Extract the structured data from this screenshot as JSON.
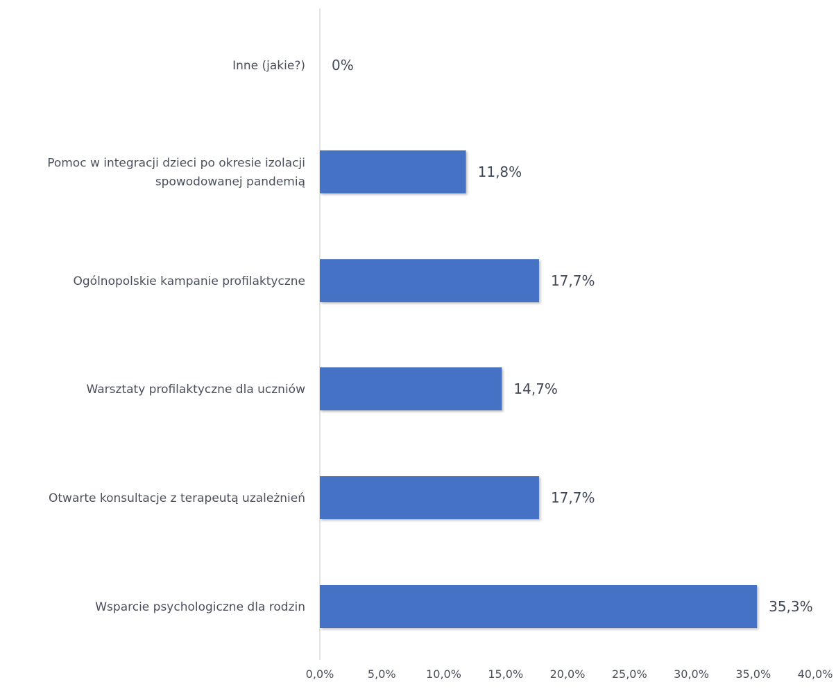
{
  "chart_data": {
    "type": "bar",
    "orientation": "horizontal",
    "categories": [
      "Inne (jakie?)",
      "Pomoc w integracji dzieci po okresie izolacji spowodowanej pandemią",
      "Ogólnopolskie kampanie profilaktyczne",
      "Warsztaty profilaktyczne dla uczniów",
      "Otwarte konsultacje z terapeutą uzależnień",
      "Wsparcie psychologiczne dla rodzin"
    ],
    "values": [
      0,
      11.8,
      17.7,
      14.7,
      17.7,
      35.3
    ],
    "data_labels": [
      "0%",
      "11,8%",
      "17,7%",
      "14,7%",
      "17,7%",
      "35,3%"
    ],
    "x_ticks": [
      "0,0%",
      "5,0%",
      "10,0%",
      "15,0%",
      "20,0%",
      "25,0%",
      "30,0%",
      "35,0%",
      "40,0%"
    ],
    "xlim": [
      0,
      40
    ],
    "title": "",
    "xlabel": "",
    "ylabel": "",
    "grid": false,
    "legend": "none",
    "colors": {
      "bar": "#4472c4",
      "axis": "#d9d9d9",
      "text": "#4a4f5c"
    }
  }
}
